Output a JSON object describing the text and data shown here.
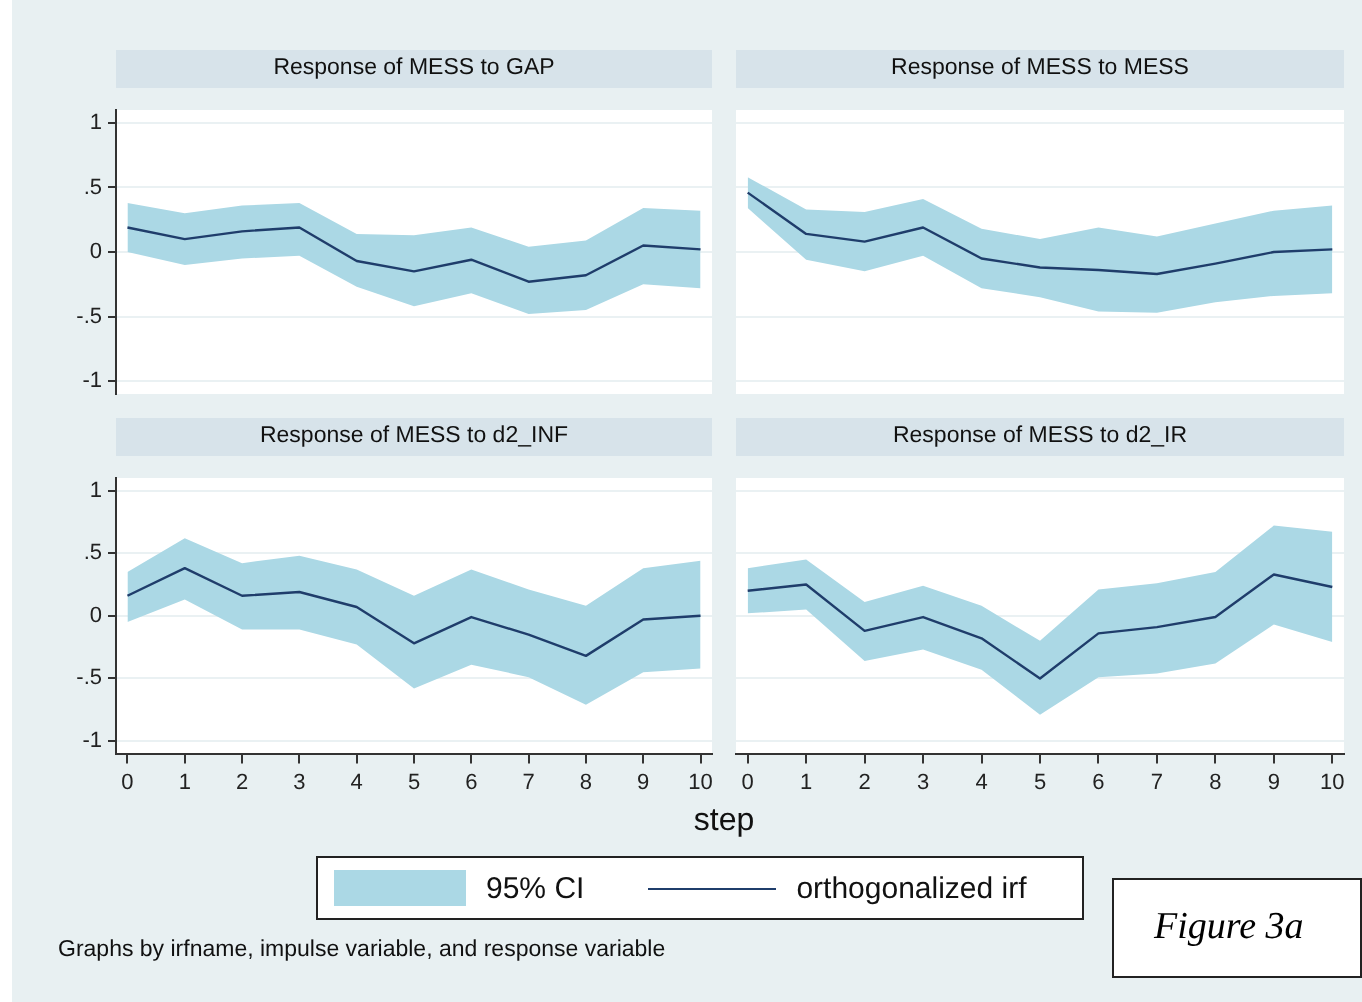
{
  "chart_data": [
    {
      "type": "line",
      "title": "Response of MESS to GAP",
      "x": [
        0,
        1,
        2,
        3,
        4,
        5,
        6,
        7,
        8,
        9,
        10
      ],
      "xlim": [
        -0.2,
        10.2
      ],
      "xticks": [
        0,
        1,
        2,
        3,
        4,
        5,
        6,
        7,
        8,
        9,
        10
      ],
      "ylim": [
        -1.1,
        1.1
      ],
      "yticks": [
        {
          "value": -1,
          "label": "-1"
        },
        {
          "value": -0.5,
          "label": "-.5"
        },
        {
          "value": 0,
          "label": "0"
        },
        {
          "value": 0.5,
          "label": ".5"
        },
        {
          "value": 1,
          "label": "1"
        }
      ],
      "grid": "y",
      "tick_labels": "y",
      "legend": "bottom",
      "series": [
        {
          "name": "orthogonalized irf",
          "color": "#1f3d6b",
          "values": [
            0.19,
            0.1,
            0.16,
            0.19,
            -0.07,
            -0.15,
            -0.06,
            -0.23,
            -0.18,
            0.05,
            0.02
          ],
          "lower": [
            0,
            -0.1,
            -0.05,
            -0.03,
            -0.27,
            -0.42,
            -0.32,
            -0.48,
            -0.45,
            -0.25,
            -0.28
          ],
          "upper": [
            0.38,
            0.3,
            0.36,
            0.38,
            0.14,
            0.13,
            0.19,
            0.04,
            0.09,
            0.34,
            0.32
          ]
        }
      ],
      "annotations": [
        "95% CI",
        "Graphs by irfname, impulse variable, and response variable",
        "Figure 3a"
      ]
    },
    {
      "type": "line",
      "title": "Response of MESS to MESS",
      "x": [
        0,
        1,
        2,
        3,
        4,
        5,
        6,
        7,
        8,
        9,
        10
      ],
      "xlim": [
        -0.2,
        10.2
      ],
      "xticks": [
        0,
        1,
        2,
        3,
        4,
        5,
        6,
        7,
        8,
        9,
        10
      ],
      "ylim": [
        -1.1,
        1.1
      ],
      "yticks": [
        {
          "value": -1,
          "label": null
        },
        {
          "value": -0.5,
          "label": null
        },
        {
          "value": 0,
          "label": null
        },
        {
          "value": 0.5,
          "label": null
        },
        {
          "value": 1,
          "label": null
        }
      ],
      "grid": "y",
      "tick_labels": false,
      "series": [
        {
          "color": "#1f3d6b",
          "values": [
            0.46,
            0.14,
            0.08,
            0.19,
            -0.05,
            -0.12,
            -0.14,
            -0.17,
            -0.09,
            0,
            0.02
          ],
          "lower": [
            0.34,
            -0.06,
            -0.15,
            -0.03,
            -0.28,
            -0.35,
            -0.46,
            -0.47,
            -0.39,
            -0.34,
            -0.32
          ],
          "upper": [
            0.58,
            0.33,
            0.31,
            0.41,
            0.18,
            0.1,
            0.19,
            0.12,
            0.22,
            0.32,
            0.36
          ]
        }
      ]
    },
    {
      "type": "line",
      "title": "Response of MESS to d2_INF",
      "xlabel": "step",
      "x": [
        0,
        1,
        2,
        3,
        4,
        5,
        6,
        7,
        8,
        9,
        10
      ],
      "xlim": [
        -0.2,
        10.2
      ],
      "xticks": [
        0,
        1,
        2,
        3,
        4,
        5,
        6,
        7,
        8,
        9,
        10
      ],
      "ylim": [
        -1.1,
        1.1
      ],
      "yticks": [
        {
          "value": -1,
          "label": "-1"
        },
        {
          "value": -0.5,
          "label": "-.5"
        },
        {
          "value": 0,
          "label": "0"
        },
        {
          "value": 0.5,
          "label": ".5"
        },
        {
          "value": 1,
          "label": "1"
        }
      ],
      "grid": "y",
      "series": [
        {
          "color": "#1f3d6b",
          "values": [
            0.16,
            0.38,
            0.16,
            0.19,
            0.07,
            -0.22,
            -0.01,
            -0.15,
            -0.32,
            -0.03,
            0
          ],
          "lower": [
            -0.05,
            0.13,
            -0.11,
            -0.11,
            -0.23,
            -0.58,
            -0.39,
            -0.49,
            -0.71,
            -0.45,
            -0.42
          ],
          "upper": [
            0.35,
            0.62,
            0.42,
            0.48,
            0.37,
            0.16,
            0.37,
            0.21,
            0.08,
            0.38,
            0.44
          ]
        }
      ]
    },
    {
      "type": "line",
      "title": "Response of MESS to d2_IR",
      "x": [
        0,
        1,
        2,
        3,
        4,
        5,
        6,
        7,
        8,
        9,
        10
      ],
      "xlim": [
        -0.2,
        10.2
      ],
      "xticks": [
        0,
        1,
        2,
        3,
        4,
        5,
        6,
        7,
        8,
        9,
        10
      ],
      "ylim": [
        -1.1,
        1.1
      ],
      "yticks": [
        {
          "value": -1,
          "label": null
        },
        {
          "value": -0.5,
          "label": null
        },
        {
          "value": 0,
          "label": null
        },
        {
          "value": 0.5,
          "label": null
        },
        {
          "value": 1,
          "label": null
        }
      ],
      "grid": "y",
      "tick_labels": "x",
      "series": [
        {
          "color": "#1f3d6b",
          "values": [
            0.2,
            0.25,
            -0.12,
            -0.01,
            -0.18,
            -0.5,
            -0.14,
            -0.09,
            -0.01,
            0.33,
            0.23
          ],
          "lower": [
            0.02,
            0.05,
            -0.36,
            -0.27,
            -0.43,
            -0.79,
            -0.49,
            -0.46,
            -0.38,
            -0.07,
            -0.21
          ],
          "upper": [
            0.38,
            0.45,
            0.11,
            0.24,
            0.08,
            -0.2,
            0.21,
            0.26,
            0.35,
            0.72,
            0.67
          ]
        }
      ]
    }
  ]
}
